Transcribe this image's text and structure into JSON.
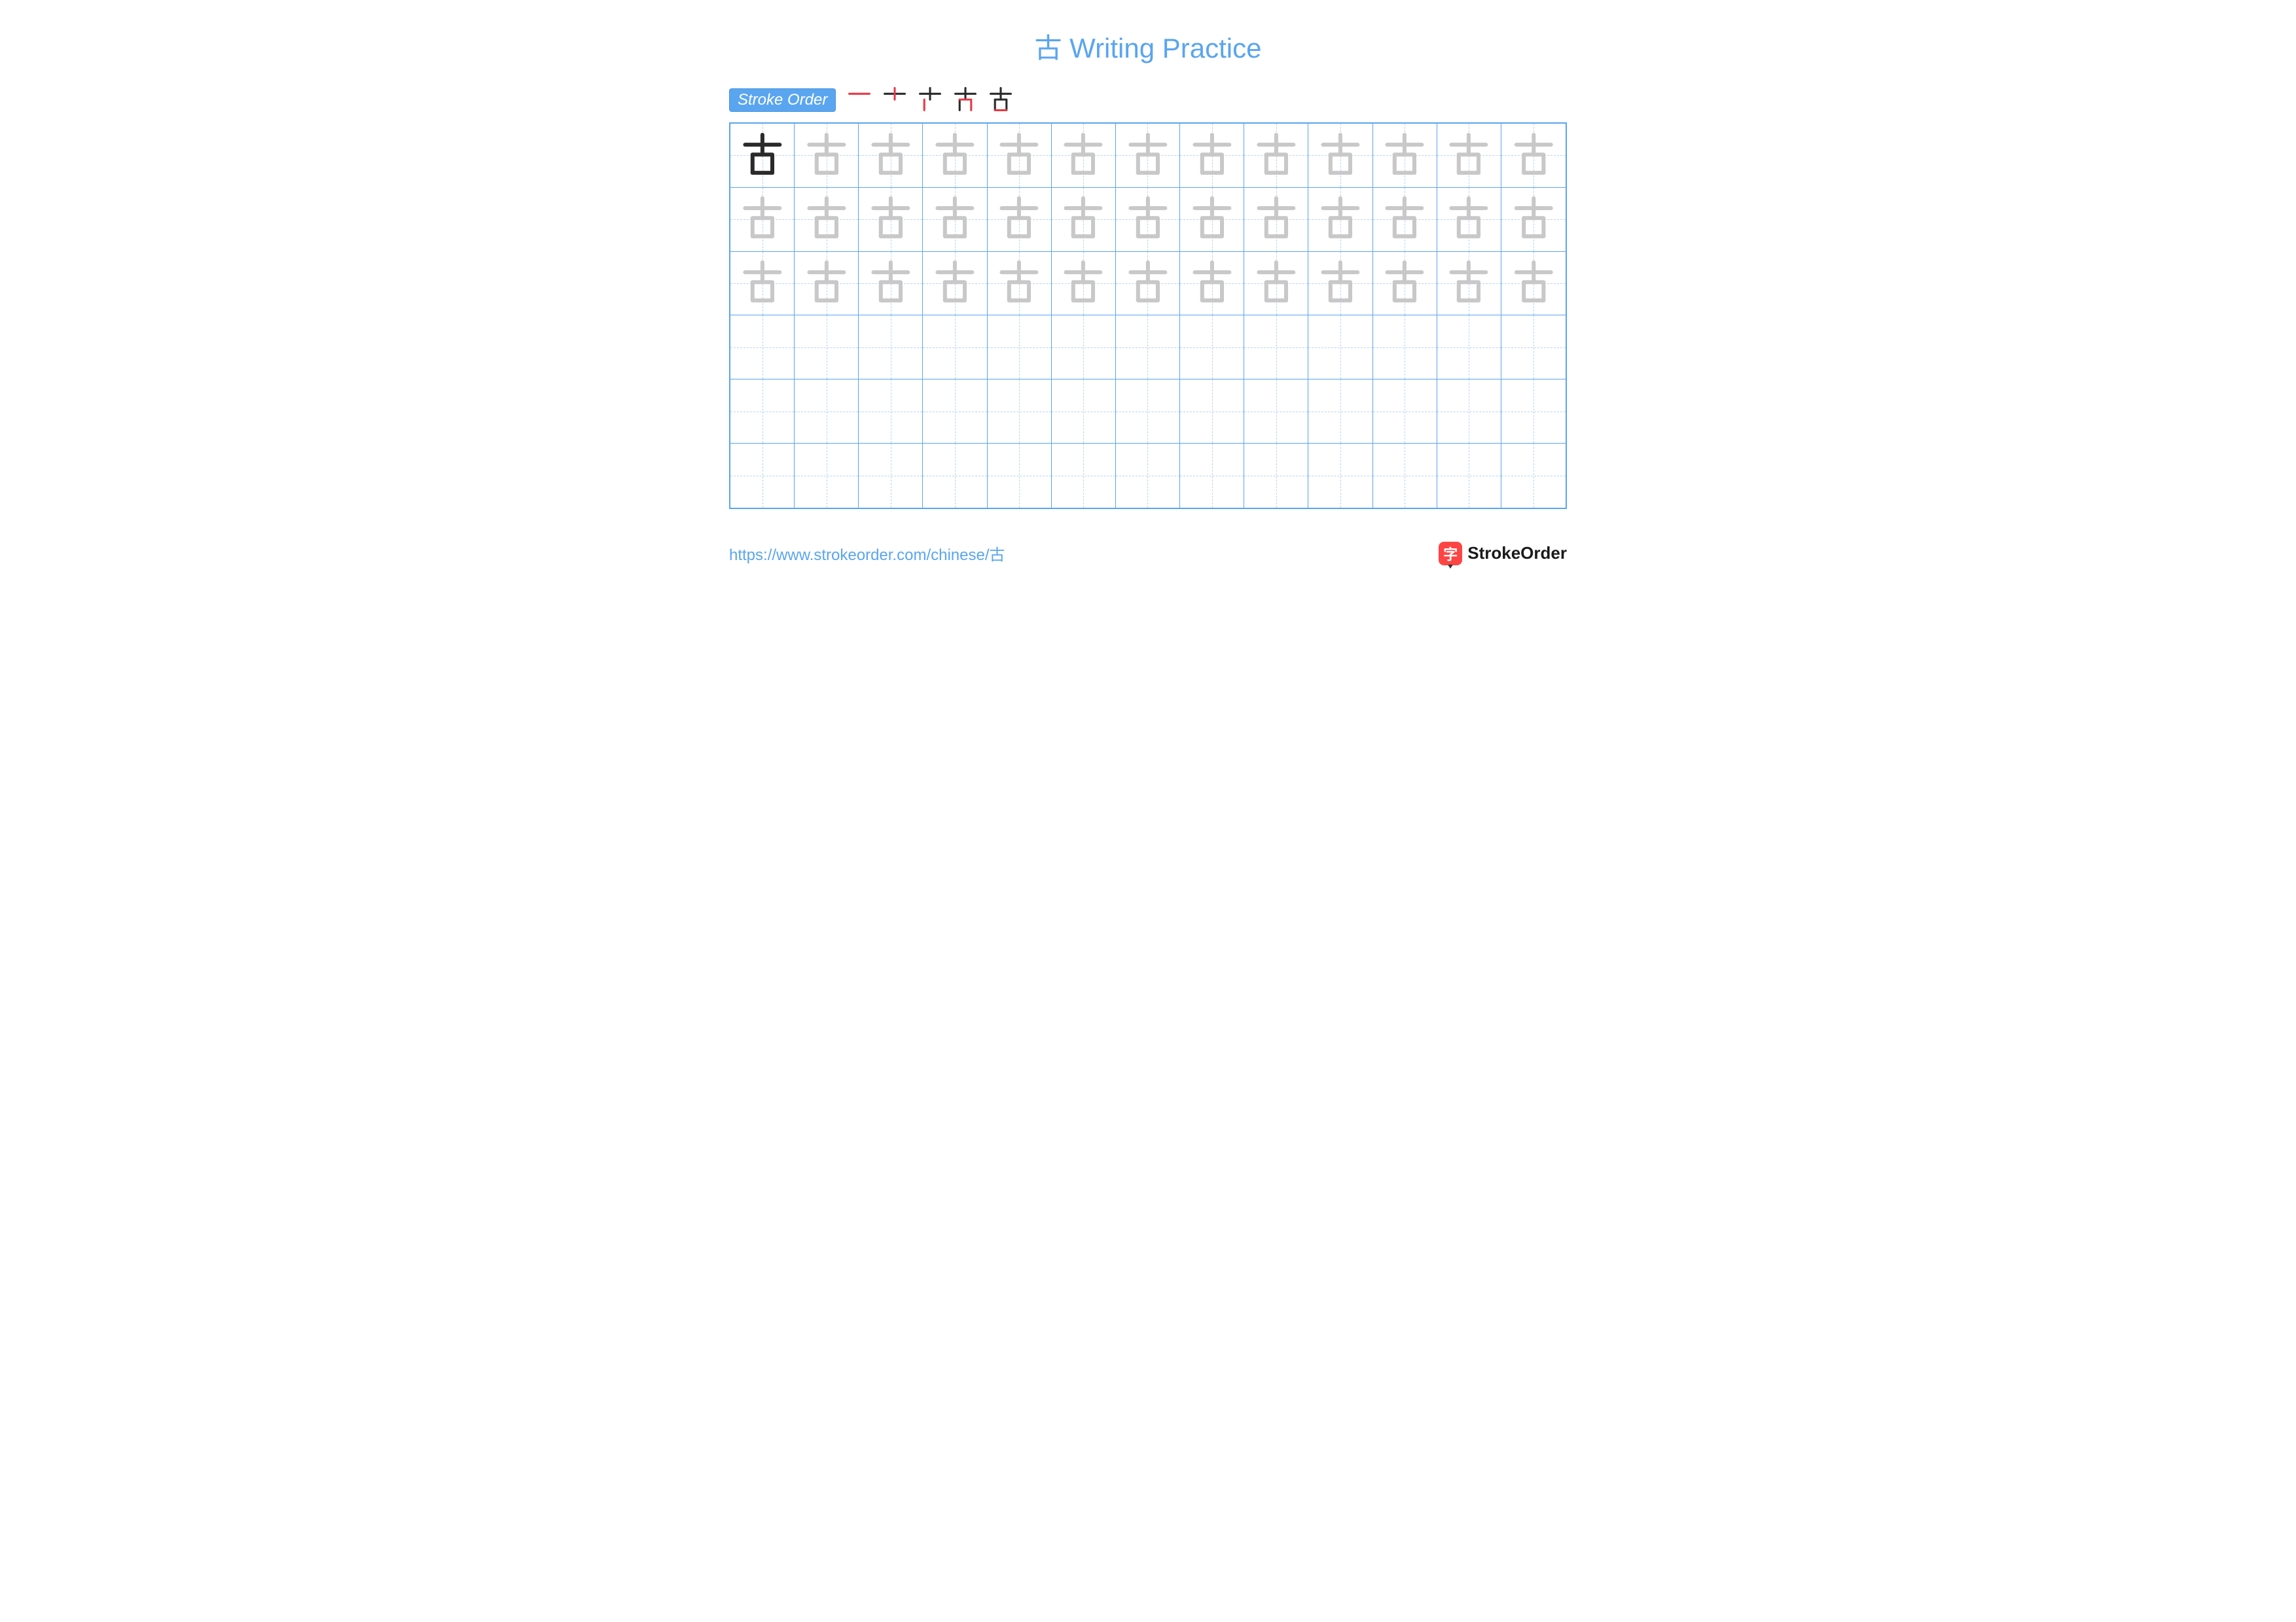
{
  "title": {
    "character": "古",
    "suffix": " Writing Practice",
    "char_color": "#5aa5f0",
    "suffix_color": "#5aa5f0",
    "fontsize": 42
  },
  "stroke_order": {
    "label": "Stroke Order",
    "badge_bg": "#5aa5f0",
    "badge_color": "#ffffff",
    "step_count": 5,
    "existing_color": "#2a2a2a",
    "new_color": "#e63946"
  },
  "grid": {
    "rows": 6,
    "cols": 13,
    "border_color": "#5aa5f0",
    "guide_color": "#b8d4f5",
    "character": "古",
    "model_color": "#2a2a2a",
    "trace_color": "#c8c8c8",
    "trace_rows": 3,
    "first_cell_is_model": true
  },
  "footer": {
    "url": "https://www.strokeorder.com/chinese/古",
    "url_color": "#5aa5f0",
    "logo_icon_char": "字",
    "logo_icon_bg": "#ff4444",
    "logo_text": "StrokeOrder",
    "logo_text_color": "#1a1a1a"
  }
}
